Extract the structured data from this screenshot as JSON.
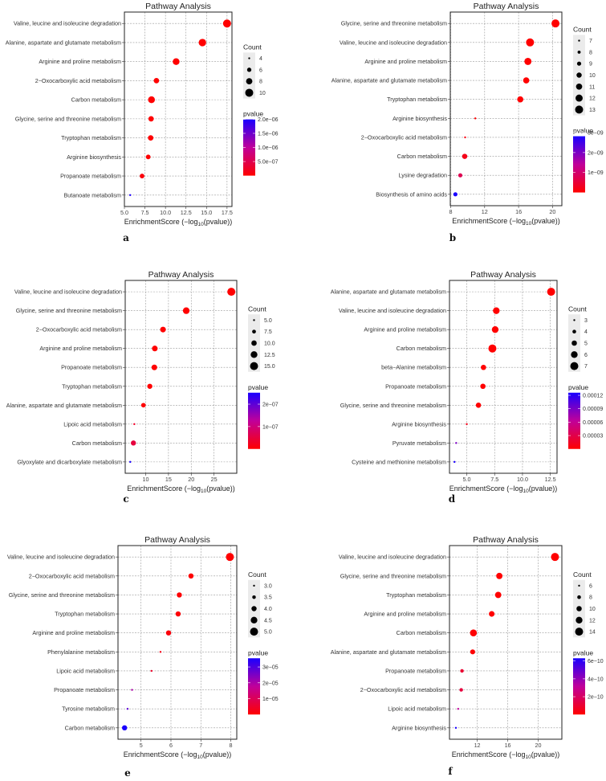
{
  "chart_data": [
    {
      "panel_label": "a",
      "type": "scatter",
      "title": "Pathway Analysis",
      "xlabel_parts": [
        "EnrichmentScore (−log",
        "10",
        "(pvalue))"
      ],
      "xlim": [
        5.0,
        18.1
      ],
      "xticks": [
        "5.0",
        "7.5",
        "10.0",
        "12.5",
        "15.0",
        "17.5"
      ],
      "categories": [
        "Valine, leucine and isoleucine degradation",
        "Alanine, aspartate and glutamate metabolism",
        "Arginine and proline metabolism",
        "2−Oxocarboxylic acid metabolism",
        "Carbon metabolism",
        "Glycine, serine and threonine metabolism",
        "Tryptophan metabolism",
        "Arginine biosynthesis",
        "Propanoate metabolism",
        "Butanoate metabolism"
      ],
      "x": [
        17.5,
        14.5,
        11.3,
        8.9,
        8.3,
        8.25,
        8.2,
        7.9,
        7.15,
        5.7
      ],
      "count": [
        11,
        10,
        9,
        7,
        9,
        7,
        7,
        6,
        6,
        3
      ],
      "count_legend": {
        "title": "Count",
        "breaks": [
          "4",
          "6",
          "8",
          "10"
        ]
      },
      "pvalue_legend": {
        "title": "pvalue",
        "ticks": [
          {
            "label": "5.0e−07",
            "value": 5e-07
          },
          {
            "label": "1.0e−06",
            "value": 1e-06
          },
          {
            "label": "1.5e−06",
            "value": 1.5e-06
          },
          {
            "label": "2.0e−06",
            "value": 2e-06
          }
        ]
      }
    },
    {
      "panel_label": "b",
      "type": "scatter",
      "title": "Pathway Analysis",
      "xlabel_parts": [
        "EnrichmentScore (−log",
        "10",
        "(pvalue))"
      ],
      "xlim": [
        7.95,
        21.1
      ],
      "xticks": [
        "8",
        "12",
        "16",
        "20"
      ],
      "categories": [
        "Glycine, serine and threonine metabolism",
        "Valine, leucine and isoleucine degradation",
        "Arginine and proline metabolism",
        "Alanine, aspartate and glutamate metabolism",
        "Tryptophan metabolism",
        "Arginine biosynthesis",
        "2−Oxocarboxylic acid metabolism",
        "Carbon metabolism",
        "Lysine degradation",
        "Biosynthesis of amino acids"
      ],
      "x": [
        20.35,
        17.35,
        17.1,
        16.9,
        16.2,
        10.9,
        9.7,
        9.65,
        9.13,
        8.55
      ],
      "count": [
        13,
        13,
        12,
        11,
        11,
        7,
        7,
        10,
        9,
        9
      ],
      "count_legend": {
        "title": "Count",
        "breaks": [
          "7",
          "8",
          "9",
          "10",
          "11",
          "12",
          "13"
        ]
      },
      "pvalue_legend": {
        "title": "pvalue",
        "ticks": [
          {
            "label": "1e−09",
            "value": 1e-09
          },
          {
            "label": "2e−09",
            "value": 2e-09
          },
          {
            "label": "3e−09",
            "value": 3e-09
          }
        ]
      }
    },
    {
      "panel_label": "c",
      "type": "scatter",
      "title": "Pathway Analysis",
      "xlabel_parts": [
        "EnrichmentScore (−log",
        "10",
        "(pvalue))"
      ],
      "xlim": [
        5.5,
        30.0
      ],
      "xticks": [
        "10",
        "15",
        "20",
        "25"
      ],
      "categories": [
        "Valine, leucine and isoleucine degradation",
        "Glycine, serine and threonine metabolism",
        "2−Oxocarboxylic acid metabolism",
        "Arginine and proline metabolism",
        "Propanoate metabolism",
        "Tryptophan metabolism",
        "Alanine, aspartate and glutamate metabolism",
        "Lipoic acid metabolism",
        "Carbon metabolism",
        "Glyoxylate and dicarboxylate metabolism"
      ],
      "x": [
        28.8,
        18.9,
        13.8,
        12.0,
        11.9,
        10.9,
        9.5,
        7.5,
        7.3,
        6.6
      ],
      "count": [
        16,
        13,
        11,
        11,
        11,
        10,
        9,
        5,
        10,
        5
      ],
      "count_legend": {
        "title": "Count",
        "breaks": [
          "5.0",
          "7.5",
          "10.0",
          "12.5",
          "15.0"
        ]
      },
      "pvalue_legend": {
        "title": "pvalue",
        "ticks": [
          {
            "label": "1e−07",
            "value": 1e-07
          },
          {
            "label": "2e−07",
            "value": 2e-07
          }
        ]
      }
    },
    {
      "panel_label": "d",
      "type": "scatter",
      "title": "Pathway Analysis",
      "xlabel_parts": [
        "EnrichmentScore (−log",
        "10",
        "(pvalue))"
      ],
      "xlim": [
        3.45,
        13.1
      ],
      "xticks": [
        "5.0",
        "7.5",
        "10.0",
        "12.5"
      ],
      "categories": [
        "Alanine, aspartate and glutamate metabolism",
        "Valine, leucine and isoleucine degradation",
        "Arginine and proline metabolism",
        "Carbon metabolism",
        "beta−Alanine metabolism",
        "Propanoate metabolism",
        "Glycine, serine and threonine metabolism",
        "Arginine biosynthesis",
        "Pyruvate metabolism",
        "Cysteine and methionine metabolism"
      ],
      "x": [
        12.57,
        7.65,
        7.55,
        7.3,
        6.5,
        6.45,
        6.05,
        5.0,
        4.05,
        3.9
      ],
      "count": [
        7,
        6,
        6,
        7,
        5,
        5,
        5,
        3,
        3,
        3
      ],
      "count_legend": {
        "title": "Count",
        "breaks": [
          "3",
          "4",
          "5",
          "6",
          "7"
        ]
      },
      "pvalue_legend": {
        "title": "pvalue",
        "ticks": [
          {
            "label": "0.00003",
            "value": 3e-05
          },
          {
            "label": "0.00006",
            "value": 6e-05
          },
          {
            "label": "0.00009",
            "value": 9e-05
          },
          {
            "label": "0.00012",
            "value": 0.00012
          }
        ]
      }
    },
    {
      "panel_label": "e",
      "type": "scatter",
      "title": "Pathway Analysis",
      "xlabel_parts": [
        "EnrichmentScore (−log",
        "10",
        "(pvalue))"
      ],
      "xlim": [
        4.23,
        8.2
      ],
      "xticks": [
        "5",
        "6",
        "7",
        "8"
      ],
      "categories": [
        "Valine, leucine and isoleucine degradation",
        "2−Oxocarboxylic acid metabolism",
        "Glycine, serine and threonine metabolism",
        "Tryptophan metabolism",
        "Arginine and proline metabolism",
        "Phenylalanine metabolism",
        "Lipoic acid metabolism",
        "Propanoate metabolism",
        "Tyrosine metabolism",
        "Carbon metabolism"
      ],
      "x": [
        7.97,
        6.67,
        6.28,
        6.24,
        5.92,
        5.65,
        5.35,
        4.7,
        4.55,
        4.45
      ],
      "count": [
        5,
        4,
        4,
        4,
        4,
        3,
        3,
        3,
        3,
        4
      ],
      "count_legend": {
        "title": "Count",
        "breaks": [
          "3.0",
          "3.5",
          "4.0",
          "4.5",
          "5.0"
        ]
      },
      "pvalue_legend": {
        "title": "pvalue",
        "ticks": [
          {
            "label": "1e−05",
            "value": 1e-05
          },
          {
            "label": "2e−05",
            "value": 2e-05
          },
          {
            "label": "3e−05",
            "value": 3e-05
          }
        ]
      }
    },
    {
      "panel_label": "f",
      "type": "scatter",
      "title": "Pathway Analysis",
      "xlabel_parts": [
        "EnrichmentScore (−log",
        "10",
        "(pvalue))"
      ],
      "xlim": [
        8.36,
        23.1
      ],
      "xticks": [
        "12",
        "16",
        "20"
      ],
      "categories": [
        "Valine, leucine and isoleucine degradation",
        "Glycine, serine and threonine metabolism",
        "Tryptophan metabolism",
        "Arginine and proline metabolism",
        "Carbon metabolism",
        "Alanine, aspartate and glutamate metabolism",
        "Propanoate metabolism",
        "2−Oxocarboxylic acid metabolism",
        "Lipoic acid metabolism",
        "Arginine biosynthesis"
      ],
      "x": [
        22.2,
        14.9,
        14.75,
        13.9,
        11.5,
        11.4,
        10.0,
        9.9,
        9.5,
        9.2
      ],
      "count": [
        15,
        12,
        12,
        11,
        13,
        10,
        8,
        8,
        6,
        6
      ],
      "count_legend": {
        "title": "Count",
        "breaks": [
          "6",
          "8",
          "10",
          "12",
          "14"
        ]
      },
      "pvalue_legend": {
        "title": "pvalue",
        "ticks": [
          {
            "label": "2e−10",
            "value": 2e-10
          },
          {
            "label": "4e−10",
            "value": 4e-10
          },
          {
            "label": "6e−10",
            "value": 6e-10
          }
        ]
      }
    }
  ]
}
